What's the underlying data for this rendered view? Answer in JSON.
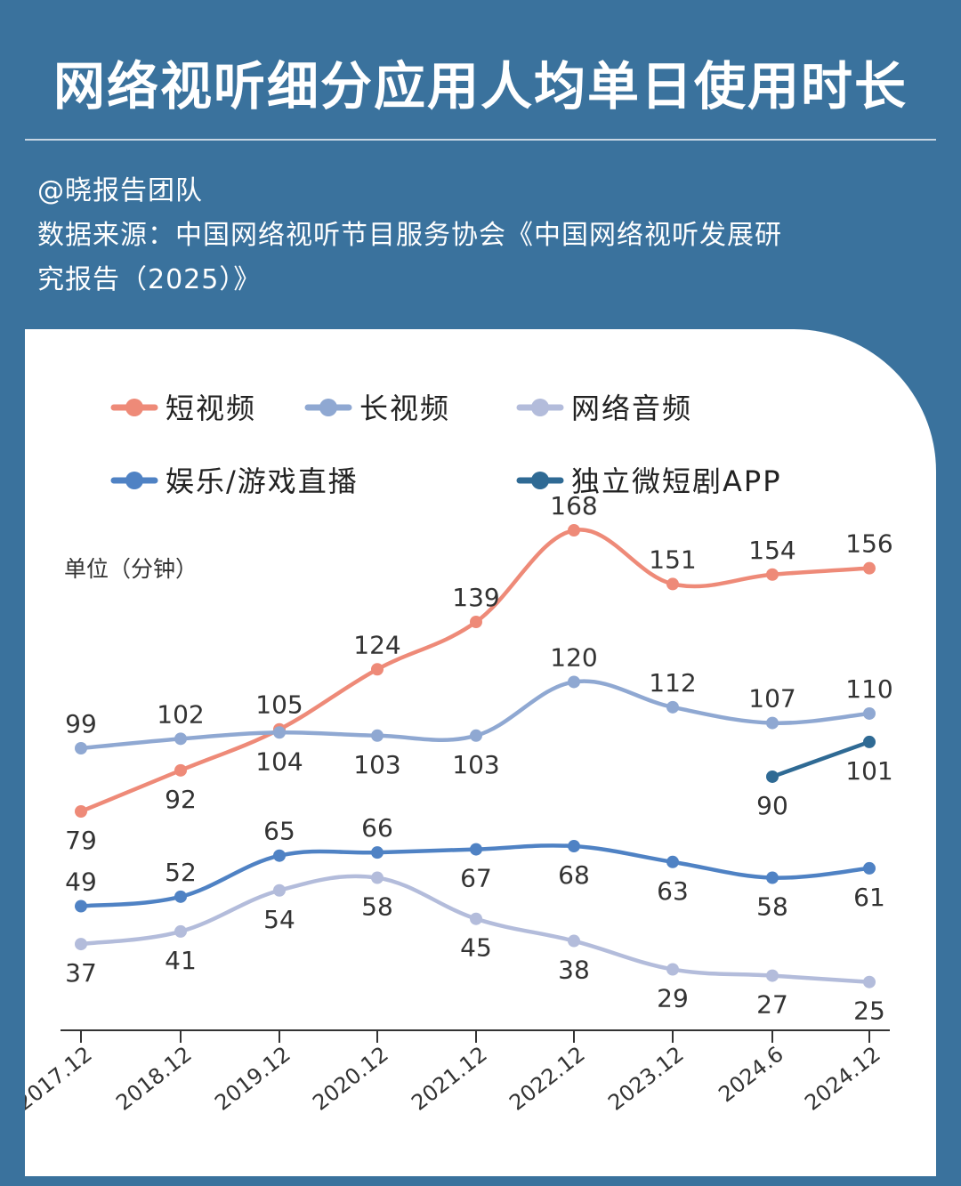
{
  "header": {
    "title": "网络视听细分应用人均单日使用时长",
    "author": "@晓报告团队",
    "source_line1": "数据来源：中国网络视听节目服务协会《中国网络视听发展研",
    "source_line2": "究报告（2025）》"
  },
  "colors": {
    "background": "#3a729d",
    "card": "#ffffff",
    "text": "#333333"
  },
  "chart_data": {
    "type": "line",
    "unit_label": "单位（分钟）",
    "categories": [
      "2017.12",
      "2018.12",
      "2019.12",
      "2020.12",
      "2021.12",
      "2022.12",
      "2023.12",
      "2024.6",
      "2024.12"
    ],
    "series": [
      {
        "name": "短视频",
        "color": "#ee8a78",
        "values": [
          79,
          92,
          105,
          124,
          139,
          168,
          151,
          154,
          156
        ]
      },
      {
        "name": "长视频",
        "color": "#8fa8d2",
        "values": [
          99,
          102,
          104,
          103,
          103,
          120,
          112,
          107,
          110
        ]
      },
      {
        "name": "网络音频",
        "color": "#b3bcdb",
        "values": [
          37,
          41,
          54,
          58,
          45,
          38,
          29,
          27,
          25
        ]
      },
      {
        "name": "娱乐/游戏直播",
        "color": "#4f82c4",
        "values": [
          49,
          52,
          65,
          66,
          67,
          68,
          63,
          58,
          61
        ]
      },
      {
        "name": "独立微短剧APP",
        "color": "#2f6a94",
        "values": [
          null,
          null,
          null,
          null,
          null,
          null,
          null,
          90,
          101
        ]
      }
    ],
    "grid": false,
    "legend": "top"
  }
}
